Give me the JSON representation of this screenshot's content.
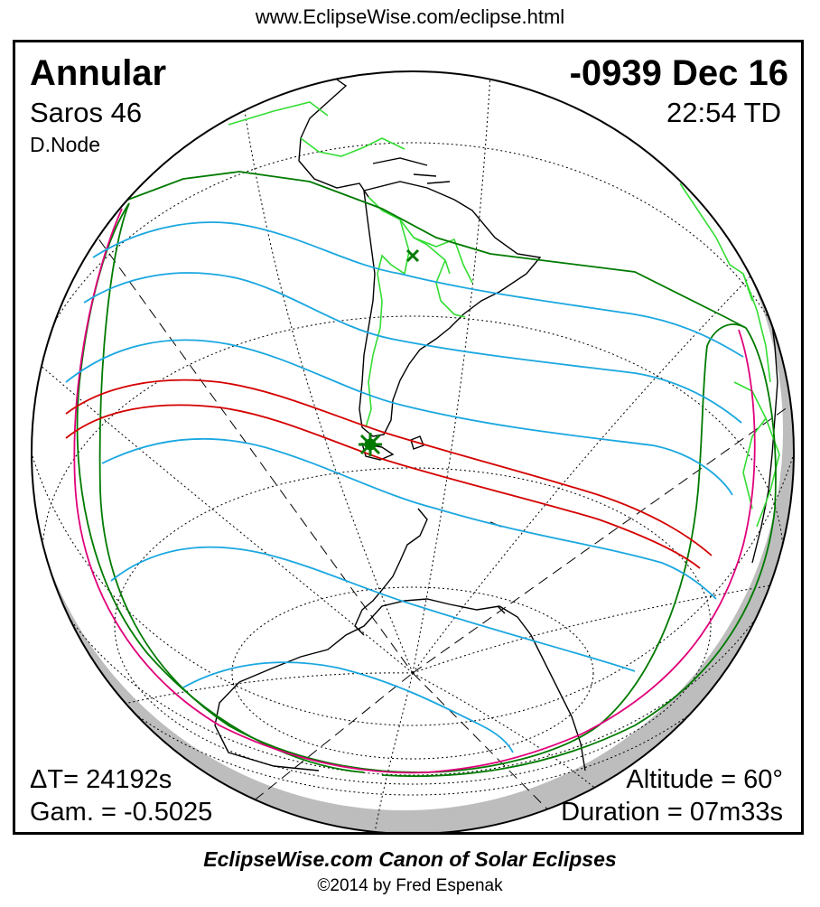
{
  "url": "www.EclipseWise.com/eclipse.html",
  "eclipse": {
    "type": "Annular",
    "saros": "Saros  46",
    "node": "D.Node",
    "date": "-0939 Dec 16",
    "time": "22:54 TD",
    "delta_t": "ΔT=  24192s",
    "gamma": "Gam. = -0.5025",
    "altitude": "Altitude = 60°",
    "duration": "Duration = 07m33s"
  },
  "footer": {
    "title": "EclipseWise.com Canon of Solar Eclipses",
    "copyright": "©2014 by Fred Espenak"
  },
  "colors": {
    "penumbral_limits": "#007a00",
    "rise_set_curves": "#e0007a",
    "magnitude_lines": "#1aa7e0",
    "central_path": "#d40000",
    "coastlines": "#000000",
    "borders": "#33dd33",
    "night_shade": "#bdbdbd",
    "greatest_eclipse_marker": "#007a00"
  }
}
